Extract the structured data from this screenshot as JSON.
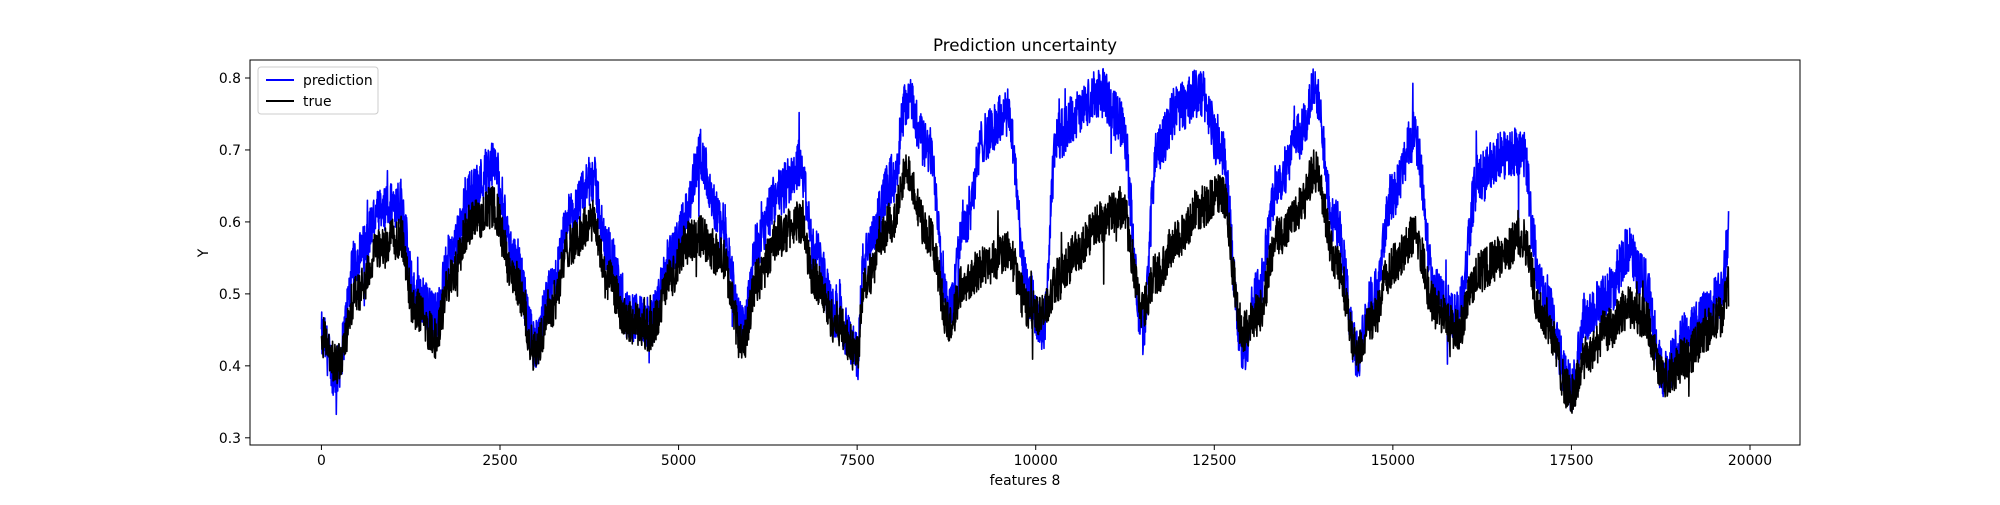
{
  "chart_data": {
    "type": "line",
    "title": "Prediction uncertainty",
    "xlabel": "features 8",
    "ylabel": "Y",
    "xlim": [
      -1000,
      20700
    ],
    "ylim": [
      0.29,
      0.825
    ],
    "xticks": [
      0,
      2500,
      5000,
      7500,
      10000,
      12500,
      15000,
      17500,
      20000
    ],
    "xtick_labels": [
      "0",
      "2500",
      "5000",
      "7500",
      "10000",
      "12500",
      "15000",
      "17500",
      "20000"
    ],
    "yticks": [
      0.3,
      0.4,
      0.5,
      0.6,
      0.7,
      0.8
    ],
    "ytick_labels": [
      "0.3",
      "0.4",
      "0.5",
      "0.6",
      "0.7",
      "0.8"
    ],
    "grid": false,
    "legend_position": "top-left",
    "series": [
      {
        "name": "prediction",
        "color": "#0000ff",
        "noise": 0.035,
        "x": [
          0,
          200,
          500,
          800,
          1100,
          1300,
          1600,
          1800,
          2100,
          2400,
          2700,
          3000,
          3200,
          3500,
          3800,
          4000,
          4300,
          4600,
          4900,
          5100,
          5300,
          5600,
          5900,
          6100,
          6400,
          6700,
          6900,
          7200,
          7500,
          7600,
          8000,
          8200,
          8500,
          8800,
          9000,
          9300,
          9600,
          9900,
          10100,
          10300,
          10600,
          10900,
          11200,
          11500,
          11700,
          12000,
          12300,
          12600,
          12900,
          13100,
          13400,
          13700,
          13900,
          14200,
          14500,
          14700,
          15000,
          15300,
          15600,
          15900,
          16200,
          16500,
          16800,
          17100,
          17500,
          17700,
          18000,
          18300,
          18500,
          18800,
          19100,
          19400,
          19600,
          19700
        ],
        "y": [
          0.44,
          0.39,
          0.55,
          0.61,
          0.63,
          0.5,
          0.47,
          0.55,
          0.64,
          0.68,
          0.55,
          0.43,
          0.5,
          0.61,
          0.66,
          0.56,
          0.47,
          0.46,
          0.55,
          0.61,
          0.69,
          0.6,
          0.45,
          0.57,
          0.64,
          0.68,
          0.56,
          0.47,
          0.42,
          0.55,
          0.66,
          0.77,
          0.7,
          0.48,
          0.6,
          0.72,
          0.75,
          0.5,
          0.45,
          0.72,
          0.75,
          0.78,
          0.74,
          0.45,
          0.7,
          0.76,
          0.78,
          0.7,
          0.42,
          0.5,
          0.66,
          0.72,
          0.78,
          0.6,
          0.42,
          0.49,
          0.64,
          0.72,
          0.5,
          0.47,
          0.66,
          0.69,
          0.7,
          0.5,
          0.37,
          0.47,
          0.5,
          0.56,
          0.52,
          0.39,
          0.44,
          0.48,
          0.5,
          0.58
        ]
      },
      {
        "name": "true",
        "color": "#000000",
        "noise": 0.03,
        "x": [
          0,
          200,
          500,
          800,
          1100,
          1300,
          1600,
          1800,
          2100,
          2400,
          2700,
          3000,
          3200,
          3500,
          3800,
          4000,
          4300,
          4600,
          4900,
          5100,
          5300,
          5600,
          5900,
          6100,
          6400,
          6700,
          6900,
          7200,
          7500,
          7600,
          8000,
          8200,
          8500,
          8800,
          9000,
          9300,
          9600,
          9900,
          10100,
          10300,
          10600,
          10900,
          11200,
          11500,
          11700,
          12000,
          12300,
          12600,
          12900,
          13100,
          13400,
          13700,
          13900,
          14200,
          14500,
          14700,
          15000,
          15300,
          15600,
          15900,
          16200,
          16500,
          16800,
          17100,
          17500,
          17700,
          18000,
          18300,
          18500,
          18800,
          19100,
          19400,
          19600,
          19700
        ],
        "y": [
          0.44,
          0.4,
          0.5,
          0.56,
          0.58,
          0.48,
          0.44,
          0.52,
          0.6,
          0.62,
          0.52,
          0.42,
          0.48,
          0.57,
          0.6,
          0.52,
          0.46,
          0.45,
          0.52,
          0.57,
          0.58,
          0.55,
          0.43,
          0.52,
          0.58,
          0.6,
          0.52,
          0.46,
          0.42,
          0.52,
          0.6,
          0.67,
          0.58,
          0.46,
          0.52,
          0.54,
          0.56,
          0.48,
          0.47,
          0.52,
          0.56,
          0.6,
          0.62,
          0.48,
          0.53,
          0.58,
          0.62,
          0.64,
          0.45,
          0.47,
          0.58,
          0.62,
          0.67,
          0.55,
          0.42,
          0.46,
          0.54,
          0.58,
          0.48,
          0.45,
          0.53,
          0.55,
          0.58,
          0.47,
          0.36,
          0.41,
          0.45,
          0.48,
          0.47,
          0.38,
          0.41,
          0.45,
          0.47,
          0.51
        ]
      }
    ]
  }
}
